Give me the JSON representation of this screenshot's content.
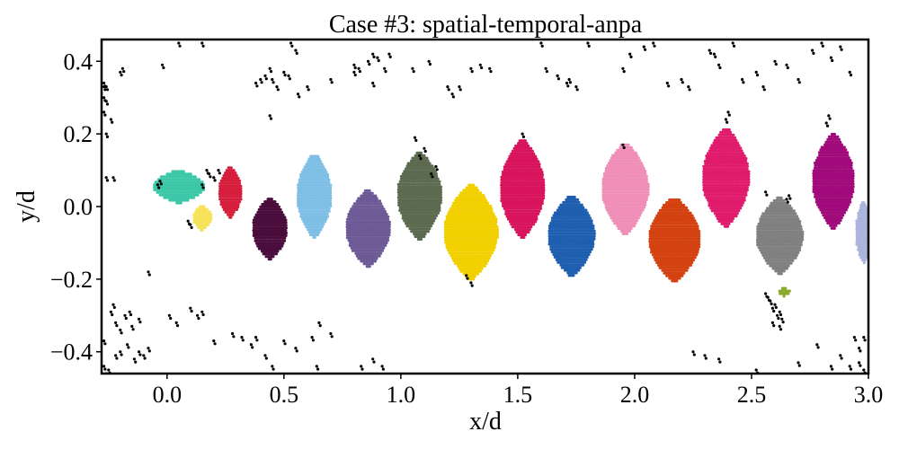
{
  "chart_data": {
    "type": "scatter",
    "title": "Case #3: spatial-temporal-anpa",
    "xlabel": "x/d",
    "ylabel": "y/d",
    "xlim": [
      -0.28,
      3.0
    ],
    "ylim": [
      -0.46,
      0.46
    ],
    "x_ticks": [
      0.0,
      0.5,
      1.0,
      1.5,
      2.0,
      2.5,
      3.0
    ],
    "x_tick_labels": [
      "0.0",
      "0.5",
      "1.0",
      "1.5",
      "2.0",
      "2.5",
      "3.0"
    ],
    "y_ticks": [
      -0.4,
      -0.2,
      0.0,
      0.2,
      0.4
    ],
    "y_tick_labels": [
      "−0.4",
      "−0.2",
      "0.0",
      "0.2",
      "0.4"
    ],
    "grid": false,
    "legend": "none",
    "marker_size": 1.6,
    "clusters": [
      {
        "color": "#3cc8a8",
        "cx": 0.05,
        "cy": 0.055,
        "w": 0.11,
        "h": 0.045,
        "spacing": 0.012
      },
      {
        "color": "#f6e35a",
        "cx": 0.15,
        "cy": -0.03,
        "w": 0.04,
        "h": 0.035,
        "spacing": 0.012
      },
      {
        "color": "#d61f3c",
        "cx": 0.27,
        "cy": 0.04,
        "w": 0.05,
        "h": 0.07,
        "spacing": 0.012
      },
      {
        "color": "#4a0d3c",
        "cx": 0.44,
        "cy": -0.06,
        "w": 0.075,
        "h": 0.085,
        "spacing": 0.012
      },
      {
        "color": "#7fbfe6",
        "cx": 0.63,
        "cy": 0.03,
        "w": 0.075,
        "h": 0.115,
        "spacing": 0.012
      },
      {
        "color": "#6d5a96",
        "cx": 0.86,
        "cy": -0.06,
        "w": 0.095,
        "h": 0.105,
        "spacing": 0.012
      },
      {
        "color": "#5c6b50",
        "cx": 1.08,
        "cy": 0.03,
        "w": 0.095,
        "h": 0.12,
        "spacing": 0.012
      },
      {
        "color": "#f2d000",
        "cx": 1.3,
        "cy": -0.07,
        "w": 0.115,
        "h": 0.13,
        "spacing": 0.012
      },
      {
        "color": "#d8145c",
        "cx": 1.52,
        "cy": 0.05,
        "w": 0.095,
        "h": 0.135,
        "spacing": 0.012
      },
      {
        "color": "#1f5fb0",
        "cx": 1.73,
        "cy": -0.08,
        "w": 0.1,
        "h": 0.11,
        "spacing": 0.012
      },
      {
        "color": "#ef8fb8",
        "cx": 1.96,
        "cy": 0.05,
        "w": 0.1,
        "h": 0.125,
        "spacing": 0.012
      },
      {
        "color": "#d44211",
        "cx": 2.17,
        "cy": -0.09,
        "w": 0.11,
        "h": 0.115,
        "spacing": 0.012
      },
      {
        "color": "#e01b6c",
        "cx": 2.39,
        "cy": 0.08,
        "w": 0.1,
        "h": 0.135,
        "spacing": 0.012
      },
      {
        "color": "#808080",
        "cx": 2.62,
        "cy": -0.08,
        "w": 0.1,
        "h": 0.105,
        "spacing": 0.012
      },
      {
        "color": "#88a82e",
        "cx": 2.64,
        "cy": -0.235,
        "w": 0.025,
        "h": 0.012,
        "spacing": 0.012
      },
      {
        "color": "#a00a7a",
        "cx": 2.85,
        "cy": 0.07,
        "w": 0.09,
        "h": 0.13,
        "spacing": 0.012
      },
      {
        "color": "#aab4dc",
        "cx": 2.98,
        "cy": -0.07,
        "w": 0.035,
        "h": 0.085,
        "spacing": 0.012
      }
    ],
    "noise_points": [
      [
        -0.27,
        0.34
      ],
      [
        -0.27,
        0.33
      ],
      [
        -0.26,
        0.33
      ],
      [
        -0.27,
        0.3
      ],
      [
        -0.26,
        0.29
      ],
      [
        -0.27,
        0.26
      ],
      [
        -0.24,
        0.24
      ],
      [
        -0.26,
        0.2
      ],
      [
        -0.26,
        0.08
      ],
      [
        -0.23,
        0.08
      ],
      [
        -0.2,
        0.37
      ],
      [
        -0.19,
        0.38
      ],
      [
        -0.02,
        0.39
      ],
      [
        0.05,
        0.45
      ],
      [
        0.15,
        0.45
      ],
      [
        0.38,
        0.34
      ],
      [
        0.4,
        0.35
      ],
      [
        0.42,
        0.36
      ],
      [
        0.45,
        0.35
      ],
      [
        0.44,
        0.38
      ],
      [
        0.47,
        0.33
      ],
      [
        0.5,
        0.37
      ],
      [
        0.52,
        0.36
      ],
      [
        0.55,
        0.43
      ],
      [
        0.56,
        0.31
      ],
      [
        0.44,
        0.25
      ],
      [
        0.53,
        0.45
      ],
      [
        0.6,
        0.33
      ],
      [
        0.7,
        0.35
      ],
      [
        0.8,
        0.37
      ],
      [
        0.8,
        0.39
      ],
      [
        0.82,
        0.38
      ],
      [
        0.86,
        0.4
      ],
      [
        0.88,
        0.42
      ],
      [
        0.9,
        0.41
      ],
      [
        0.93,
        0.38
      ],
      [
        0.95,
        0.42
      ],
      [
        0.88,
        0.34
      ],
      [
        1.05,
        0.38
      ],
      [
        1.12,
        0.4
      ],
      [
        1.2,
        0.33
      ],
      [
        1.22,
        0.31
      ],
      [
        1.25,
        0.33
      ],
      [
        1.3,
        0.38
      ],
      [
        1.34,
        0.39
      ],
      [
        1.38,
        0.38
      ],
      [
        1.6,
        0.45
      ],
      [
        1.62,
        0.38
      ],
      [
        1.67,
        0.36
      ],
      [
        1.71,
        0.34
      ],
      [
        1.72,
        0.35
      ],
      [
        1.75,
        0.33
      ],
      [
        1.8,
        0.45
      ],
      [
        1.95,
        0.38
      ],
      [
        1.98,
        0.42
      ],
      [
        2.04,
        0.44
      ],
      [
        2.08,
        0.45
      ],
      [
        2.14,
        0.34
      ],
      [
        2.2,
        0.35
      ],
      [
        2.23,
        0.33
      ],
      [
        2.32,
        0.43
      ],
      [
        2.34,
        0.42
      ],
      [
        2.36,
        0.39
      ],
      [
        2.42,
        0.45
      ],
      [
        2.46,
        0.35
      ],
      [
        2.52,
        0.37
      ],
      [
        2.55,
        0.33
      ],
      [
        2.6,
        0.4
      ],
      [
        2.65,
        0.39
      ],
      [
        2.7,
        0.35
      ],
      [
        2.76,
        0.43
      ],
      [
        2.8,
        0.45
      ],
      [
        2.84,
        0.41
      ],
      [
        2.88,
        0.44
      ],
      [
        2.92,
        0.37
      ],
      [
        -0.27,
        -0.37
      ],
      [
        -0.27,
        -0.44
      ],
      [
        -0.26,
        -0.46
      ],
      [
        -0.24,
        -0.29
      ],
      [
        -0.23,
        -0.27
      ],
      [
        -0.22,
        -0.32
      ],
      [
        -0.2,
        -0.34
      ],
      [
        -0.18,
        -0.3
      ],
      [
        -0.16,
        -0.29
      ],
      [
        -0.15,
        -0.33
      ],
      [
        -0.12,
        -0.31
      ],
      [
        -0.22,
        -0.41
      ],
      [
        -0.2,
        -0.4
      ],
      [
        -0.17,
        -0.38
      ],
      [
        -0.14,
        -0.42
      ],
      [
        -0.12,
        -0.4
      ],
      [
        -0.1,
        -0.41
      ],
      [
        -0.08,
        -0.39
      ],
      [
        -0.25,
        -0.45
      ],
      [
        -0.08,
        -0.18
      ],
      [
        0.01,
        -0.3
      ],
      [
        0.04,
        -0.32
      ],
      [
        0.1,
        -0.28
      ],
      [
        0.13,
        -0.3
      ],
      [
        0.15,
        -0.29
      ],
      [
        0.2,
        -0.37
      ],
      [
        0.28,
        -0.35
      ],
      [
        0.32,
        -0.36
      ],
      [
        0.36,
        -0.38
      ],
      [
        0.38,
        -0.36
      ],
      [
        0.42,
        -0.41
      ],
      [
        0.45,
        -0.44
      ],
      [
        0.5,
        -0.37
      ],
      [
        0.55,
        -0.39
      ],
      [
        0.62,
        -0.36
      ],
      [
        0.64,
        -0.44
      ],
      [
        0.65,
        -0.32
      ],
      [
        0.7,
        -0.35
      ],
      [
        0.83,
        -0.44
      ],
      [
        0.88,
        -0.42
      ],
      [
        0.92,
        -0.44
      ],
      [
        2.56,
        -0.24
      ],
      [
        2.57,
        -0.25
      ],
      [
        2.58,
        -0.26
      ],
      [
        2.59,
        -0.28
      ],
      [
        2.6,
        -0.27
      ],
      [
        2.61,
        -0.3
      ],
      [
        2.62,
        -0.29
      ],
      [
        2.63,
        -0.31
      ],
      [
        2.59,
        -0.32
      ],
      [
        2.62,
        -0.33
      ],
      [
        2.25,
        -0.4
      ],
      [
        2.3,
        -0.41
      ],
      [
        2.36,
        -0.42
      ],
      [
        2.52,
        -0.45
      ],
      [
        2.7,
        -0.43
      ],
      [
        2.78,
        -0.38
      ],
      [
        2.88,
        -0.41
      ],
      [
        2.92,
        -0.44
      ],
      [
        2.96,
        -0.39
      ],
      [
        2.98,
        -0.45
      ],
      [
        2.98,
        -0.36
      ],
      [
        2.94,
        -0.36
      ],
      [
        2.96,
        -0.43
      ],
      [
        2.84,
        -0.44
      ],
      [
        2.65,
        0.02
      ],
      [
        2.66,
        0.03
      ],
      [
        0.17,
        0.1
      ],
      [
        0.18,
        0.09
      ],
      [
        0.2,
        0.08
      ],
      [
        0.15,
        0.06
      ],
      [
        0.09,
        -0.04
      ],
      [
        0.1,
        -0.05
      ],
      [
        0.22,
        0.1
      ],
      [
        -0.04,
        0.06
      ],
      [
        -0.03,
        0.07
      ],
      [
        1.1,
        0.16
      ],
      [
        1.08,
        0.14
      ],
      [
        1.15,
        0.11
      ],
      [
        1.13,
        0.09
      ],
      [
        1.06,
        0.19
      ],
      [
        1.52,
        0.2
      ],
      [
        1.95,
        0.17
      ],
      [
        2.56,
        0.04
      ],
      [
        2.83,
        0.25
      ],
      [
        2.82,
        0.23
      ],
      [
        2.4,
        0.26
      ],
      [
        2.39,
        0.24
      ],
      [
        1.3,
        -0.21
      ],
      [
        1.28,
        -0.19
      ]
    ]
  }
}
